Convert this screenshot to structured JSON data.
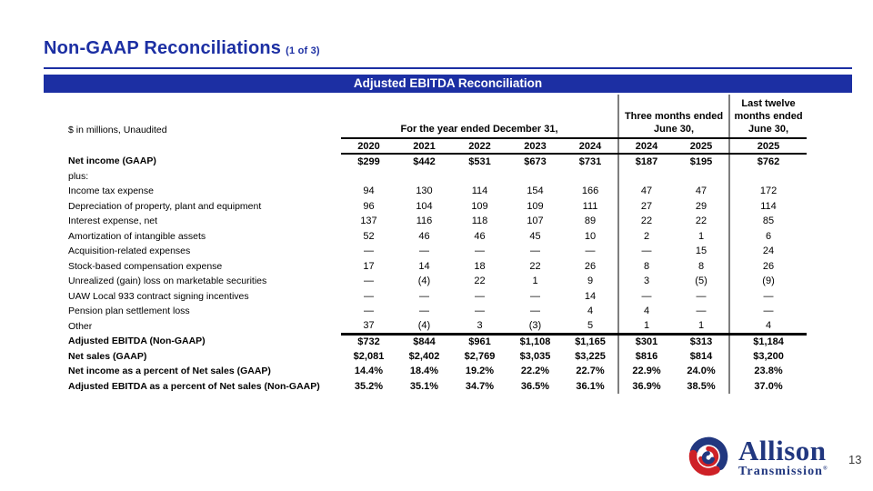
{
  "header": {
    "title": "Non-GAAP Reconciliations",
    "subtitle": "(1 of 3)"
  },
  "colors": {
    "accent_blue": "#1c2fa3",
    "divider_gray": "#7f7f7f",
    "logo_blue": "#21377f",
    "logo_red": "#ce2127",
    "page_num_gray": "#3a3a3a"
  },
  "table": {
    "banner_title": "Adjusted EBITDA Reconciliation",
    "unit_note": "$ in millions, Unaudited",
    "col_groups": [
      {
        "lines": [
          "For the year ended December 31,"
        ],
        "cols": [
          "2020",
          "2021",
          "2022",
          "2023",
          "2024"
        ]
      },
      {
        "lines": [
          "Three months ended",
          "June 30,"
        ],
        "cols": [
          "2024",
          "2025"
        ]
      },
      {
        "lines": [
          "Last twelve",
          "months ended",
          "June 30,"
        ],
        "cols": [
          "2025"
        ]
      }
    ],
    "rows": [
      {
        "label": "Net income (GAAP)",
        "bold": true,
        "values": [
          "$299",
          "$442",
          "$531",
          "$673",
          "$731",
          "$187",
          "$195",
          "$762"
        ]
      },
      {
        "label": "plus:",
        "values": [
          "",
          "",
          "",
          "",
          "",
          "",
          "",
          ""
        ]
      },
      {
        "label": "Income tax expense",
        "values": [
          "94",
          "130",
          "114",
          "154",
          "166",
          "47",
          "47",
          "172"
        ]
      },
      {
        "label": "Depreciation of property, plant and equipment",
        "values": [
          "96",
          "104",
          "109",
          "109",
          "111",
          "27",
          "29",
          "114"
        ]
      },
      {
        "label": "Interest expense, net",
        "values": [
          "137",
          "116",
          "118",
          "107",
          "89",
          "22",
          "22",
          "85"
        ]
      },
      {
        "label": "Amortization of intangible assets",
        "values": [
          "52",
          "46",
          "46",
          "45",
          "10",
          "2",
          "1",
          "6"
        ]
      },
      {
        "label": "Acquisition-related expenses",
        "values": [
          "—",
          "—",
          "—",
          "—",
          "—",
          "—",
          "15",
          "24"
        ]
      },
      {
        "label": "Stock-based compensation expense",
        "values": [
          "17",
          "14",
          "18",
          "22",
          "26",
          "8",
          "8",
          "26"
        ]
      },
      {
        "label": "Unrealized (gain) loss on marketable securities",
        "values": [
          "—",
          "(4)",
          "22",
          "1",
          "9",
          "3",
          "(5)",
          "(9)"
        ]
      },
      {
        "label": "UAW Local 933 contract signing incentives",
        "values": [
          "—",
          "—",
          "—",
          "—",
          "14",
          "—",
          "—",
          "—"
        ]
      },
      {
        "label": "Pension plan settlement loss",
        "values": [
          "—",
          "—",
          "—",
          "—",
          "4",
          "4",
          "—",
          "—"
        ]
      },
      {
        "label": "Other",
        "rule_below": true,
        "values": [
          "37",
          "(4)",
          "3",
          "(3)",
          "5",
          "1",
          "1",
          "4"
        ]
      },
      {
        "label": "Adjusted EBITDA (Non-GAAP)",
        "bold": true,
        "values": [
          "$732",
          "$844",
          "$961",
          "$1,108",
          "$1,165",
          "$301",
          "$313",
          "$1,184"
        ]
      },
      {
        "label": "Net sales (GAAP)",
        "bold": true,
        "values": [
          "$2,081",
          "$2,402",
          "$2,769",
          "$3,035",
          "$3,225",
          "$816",
          "$814",
          "$3,200"
        ]
      },
      {
        "label": "Net income as a percent of Net sales (GAAP)",
        "bold": true,
        "values": [
          "14.4%",
          "18.4%",
          "19.2%",
          "22.2%",
          "22.7%",
          "22.9%",
          "24.0%",
          "23.8%"
        ]
      },
      {
        "label": "Adjusted EBITDA as a percent of Net sales (Non-GAAP)",
        "bold": true,
        "values": [
          "35.2%",
          "35.1%",
          "34.7%",
          "36.5%",
          "36.1%",
          "36.9%",
          "38.5%",
          "37.0%"
        ]
      }
    ]
  },
  "footer": {
    "logo_primary": "Allison",
    "logo_secondary": "Transmission",
    "registered_mark": "®",
    "page_number": "13"
  }
}
